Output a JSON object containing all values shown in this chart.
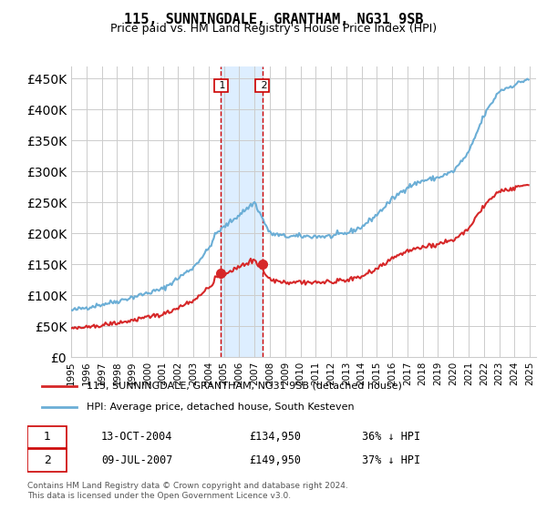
{
  "title": "115, SUNNINGDALE, GRANTHAM, NG31 9SB",
  "subtitle": "Price paid vs. HM Land Registry's House Price Index (HPI)",
  "legend_line1": "115, SUNNINGDALE, GRANTHAM, NG31 9SB (detached house)",
  "legend_line2": "HPI: Average price, detached house, South Kesteven",
  "transaction1_date": "13-OCT-2004",
  "transaction1_price": 134950,
  "transaction1_label": "36% ↓ HPI",
  "transaction2_date": "09-JUL-2007",
  "transaction2_price": 149950,
  "transaction2_label": "37% ↓ HPI",
  "footer": "Contains HM Land Registry data © Crown copyright and database right 2024.\nThis data is licensed under the Open Government Licence v3.0.",
  "hpi_color": "#6baed6",
  "price_color": "#d62728",
  "highlight_color": "#ddeeff",
  "transaction_line_color": "#cc0000",
  "ylim": [
    0,
    470000
  ],
  "yticks": [
    0,
    50000,
    100000,
    150000,
    200000,
    250000,
    300000,
    350000,
    400000,
    450000
  ]
}
